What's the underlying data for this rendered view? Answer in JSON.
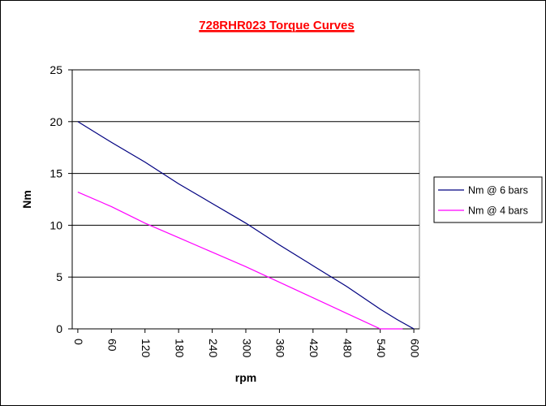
{
  "chart_data": {
    "type": "line",
    "title": "728RHR023 Torque Curves",
    "xlabel": "rpm",
    "ylabel": "Nm",
    "xlim": [
      -10,
      610
    ],
    "ylim": [
      0,
      25
    ],
    "x_ticks": [
      0,
      60,
      120,
      180,
      240,
      300,
      360,
      420,
      480,
      540,
      600
    ],
    "x_tick_labels": [
      "0",
      "60",
      "120",
      "180",
      "240",
      "300",
      "360",
      "420",
      "480",
      "540",
      "600"
    ],
    "y_ticks": [
      0,
      5,
      10,
      15,
      20,
      25
    ],
    "y_tick_labels": [
      "0",
      "5",
      "10",
      "15",
      "20",
      "25"
    ],
    "grid": "horizontal",
    "legend_position": "right",
    "series": [
      {
        "name": "Nm @ 6 bars",
        "color": "#000080",
        "points": [
          [
            0,
            20
          ],
          [
            60,
            18
          ],
          [
            120,
            16.1
          ],
          [
            180,
            14
          ],
          [
            240,
            12.1
          ],
          [
            300,
            10.2
          ],
          [
            360,
            8.1
          ],
          [
            420,
            6.1
          ],
          [
            480,
            4.1
          ],
          [
            540,
            1.9
          ],
          [
            570,
            0.9
          ],
          [
            600,
            0
          ]
        ]
      },
      {
        "name": "Nm @ 4 bars",
        "color": "#ff00ff",
        "points": [
          [
            0,
            13.2
          ],
          [
            60,
            11.8
          ],
          [
            120,
            10.2
          ],
          [
            180,
            8.8
          ],
          [
            240,
            7.4
          ],
          [
            300,
            6
          ],
          [
            360,
            4.5
          ],
          [
            420,
            3
          ],
          [
            480,
            1.5
          ],
          [
            540,
            0
          ],
          [
            580,
            0
          ]
        ]
      }
    ]
  }
}
